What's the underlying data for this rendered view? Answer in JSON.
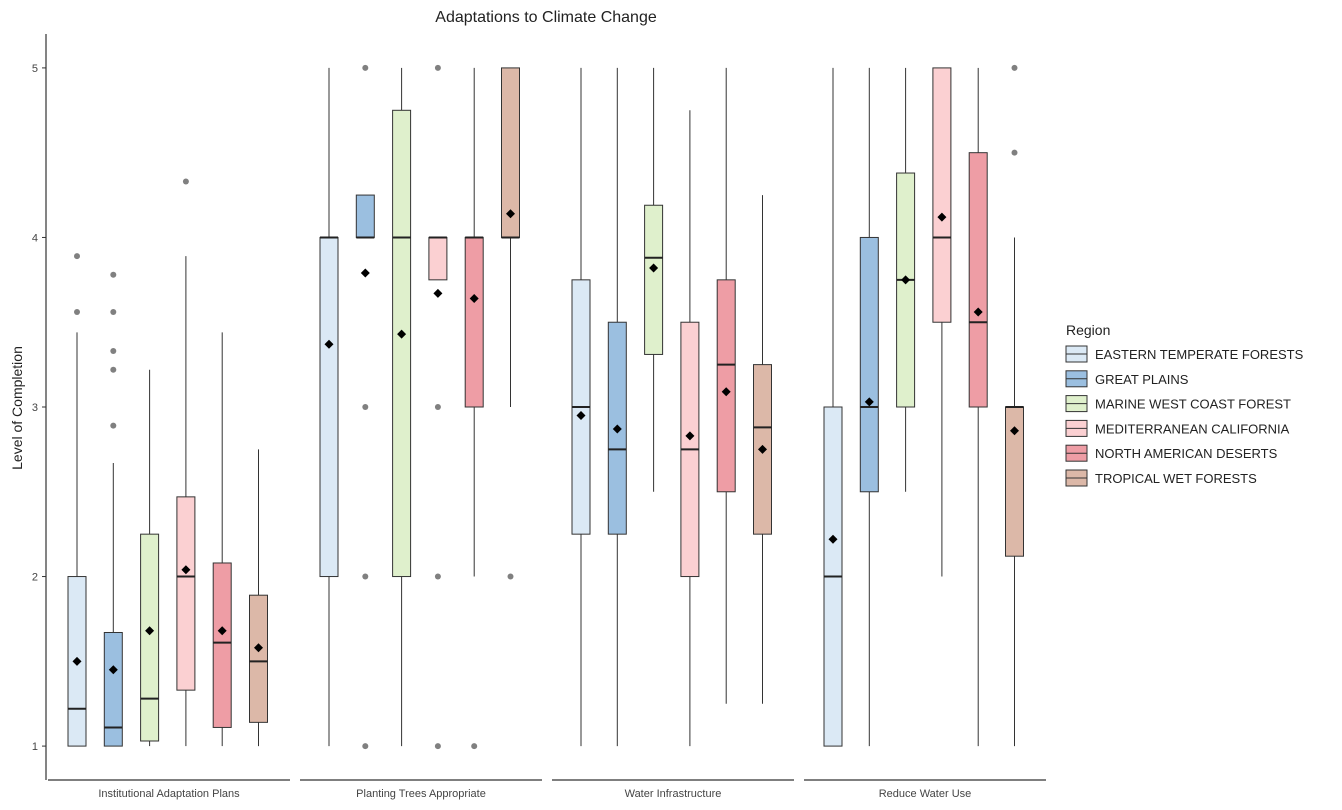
{
  "chart_data": {
    "type": "box",
    "title": "Adaptations to Climate Change",
    "xlabel": "",
    "ylabel": "Level of Completion",
    "ylim": [
      0.8,
      5.2
    ],
    "yticks": [
      1,
      2,
      3,
      4,
      5
    ],
    "grid": false,
    "legend": {
      "title": "Region",
      "placement": "right"
    },
    "categories": [
      "Institutional Adaptation Plans",
      "Planting Trees Appropriate",
      "Water Infrastructure",
      "Reduce Water Use"
    ],
    "series": [
      {
        "name": "EASTERN TEMPERATE FORESTS",
        "color": "#dbe9f5",
        "boxes": [
          {
            "whisker_low": 1,
            "q1": 1,
            "median": 1.22,
            "q3": 2,
            "whisker_high": 3.44,
            "mean": 1.5,
            "outliers": [
              3.56,
              3.89
            ]
          },
          {
            "whisker_low": 1,
            "q1": 2,
            "median": 4,
            "q3": 4,
            "whisker_high": 5,
            "mean": 3.37,
            "outliers": []
          },
          {
            "whisker_low": 1,
            "q1": 2.25,
            "median": 3,
            "q3": 3.75,
            "whisker_high": 5,
            "mean": 2.95,
            "outliers": []
          },
          {
            "whisker_low": 1,
            "q1": 1,
            "median": 2,
            "q3": 3,
            "whisker_high": 5,
            "mean": 2.22,
            "outliers": []
          }
        ]
      },
      {
        "name": "GREAT PLAINS",
        "color": "#9bbfe0",
        "boxes": [
          {
            "whisker_low": 1,
            "q1": 1,
            "median": 1.11,
            "q3": 1.67,
            "whisker_high": 2.67,
            "mean": 1.45,
            "outliers": [
              2.89,
              3.22,
              3.33,
              3.56,
              3.78
            ]
          },
          {
            "whisker_low": 4,
            "q1": 4,
            "median": 4,
            "q3": 4.25,
            "whisker_high": 4.25,
            "mean": 3.79,
            "outliers": [
              1,
              2,
              3,
              5
            ]
          },
          {
            "whisker_low": 1,
            "q1": 2.25,
            "median": 2.75,
            "q3": 3.5,
            "whisker_high": 5,
            "mean": 2.87,
            "outliers": []
          },
          {
            "whisker_low": 1,
            "q1": 2.5,
            "median": 3,
            "q3": 4,
            "whisker_high": 5,
            "mean": 3.03,
            "outliers": []
          }
        ]
      },
      {
        "name": "MARINE WEST COAST FOREST",
        "color": "#dff0cc",
        "boxes": [
          {
            "whisker_low": 1,
            "q1": 1.03,
            "median": 1.28,
            "q3": 2.25,
            "whisker_high": 3.22,
            "mean": 1.68,
            "outliers": []
          },
          {
            "whisker_low": 1,
            "q1": 2,
            "median": 4,
            "q3": 4.75,
            "whisker_high": 5,
            "mean": 3.43,
            "outliers": []
          },
          {
            "whisker_low": 2.5,
            "q1": 3.31,
            "median": 3.88,
            "q3": 4.19,
            "whisker_high": 5,
            "mean": 3.82,
            "outliers": []
          },
          {
            "whisker_low": 2.5,
            "q1": 3,
            "median": 3.75,
            "q3": 4.38,
            "whisker_high": 5,
            "mean": 3.75,
            "outliers": []
          }
        ]
      },
      {
        "name": "MEDITERRANEAN CALIFORNIA",
        "color": "#fbd0d2",
        "boxes": [
          {
            "whisker_low": 1,
            "q1": 1.33,
            "median": 2,
            "q3": 2.47,
            "whisker_high": 3.89,
            "mean": 2.04,
            "outliers": [
              4.33
            ]
          },
          {
            "whisker_low": 3.75,
            "q1": 3.75,
            "median": 4,
            "q3": 4,
            "whisker_high": 4,
            "mean": 3.67,
            "outliers": [
              1,
              2,
              3,
              5
            ]
          },
          {
            "whisker_low": 1,
            "q1": 2,
            "median": 2.75,
            "q3": 3.5,
            "whisker_high": 4.75,
            "mean": 2.83,
            "outliers": []
          },
          {
            "whisker_low": 2,
            "q1": 3.5,
            "median": 4,
            "q3": 5,
            "whisker_high": 5,
            "mean": 4.12,
            "outliers": []
          }
        ]
      },
      {
        "name": "NORTH AMERICAN DESERTS",
        "color": "#ee9da5",
        "boxes": [
          {
            "whisker_low": 1,
            "q1": 1.11,
            "median": 1.61,
            "q3": 2.08,
            "whisker_high": 3.44,
            "mean": 1.68,
            "outliers": []
          },
          {
            "whisker_low": 2,
            "q1": 3,
            "median": 4,
            "q3": 4,
            "whisker_high": 5,
            "mean": 3.64,
            "outliers": [
              1
            ]
          },
          {
            "whisker_low": 1.25,
            "q1": 2.5,
            "median": 3.25,
            "q3": 3.75,
            "whisker_high": 5,
            "mean": 3.09,
            "outliers": []
          },
          {
            "whisker_low": 1,
            "q1": 3,
            "median": 3.5,
            "q3": 4.5,
            "whisker_high": 5,
            "mean": 3.56,
            "outliers": []
          }
        ]
      },
      {
        "name": "TROPICAL WET FORESTS",
        "color": "#dcb8a8",
        "boxes": [
          {
            "whisker_low": 1,
            "q1": 1.14,
            "median": 1.5,
            "q3": 1.89,
            "whisker_high": 2.75,
            "mean": 1.58,
            "outliers": []
          },
          {
            "whisker_low": 3,
            "q1": 4,
            "median": 4,
            "q3": 5,
            "whisker_high": 5,
            "mean": 4.14,
            "outliers": [
              2
            ]
          },
          {
            "whisker_low": 1.25,
            "q1": 2.25,
            "median": 2.88,
            "q3": 3.25,
            "whisker_high": 4.25,
            "mean": 2.75,
            "outliers": []
          },
          {
            "whisker_low": 1,
            "q1": 2.12,
            "median": 3,
            "q3": 3,
            "whisker_high": 4,
            "mean": 2.86,
            "outliers": [
              4.5,
              5
            ]
          }
        ]
      }
    ]
  }
}
